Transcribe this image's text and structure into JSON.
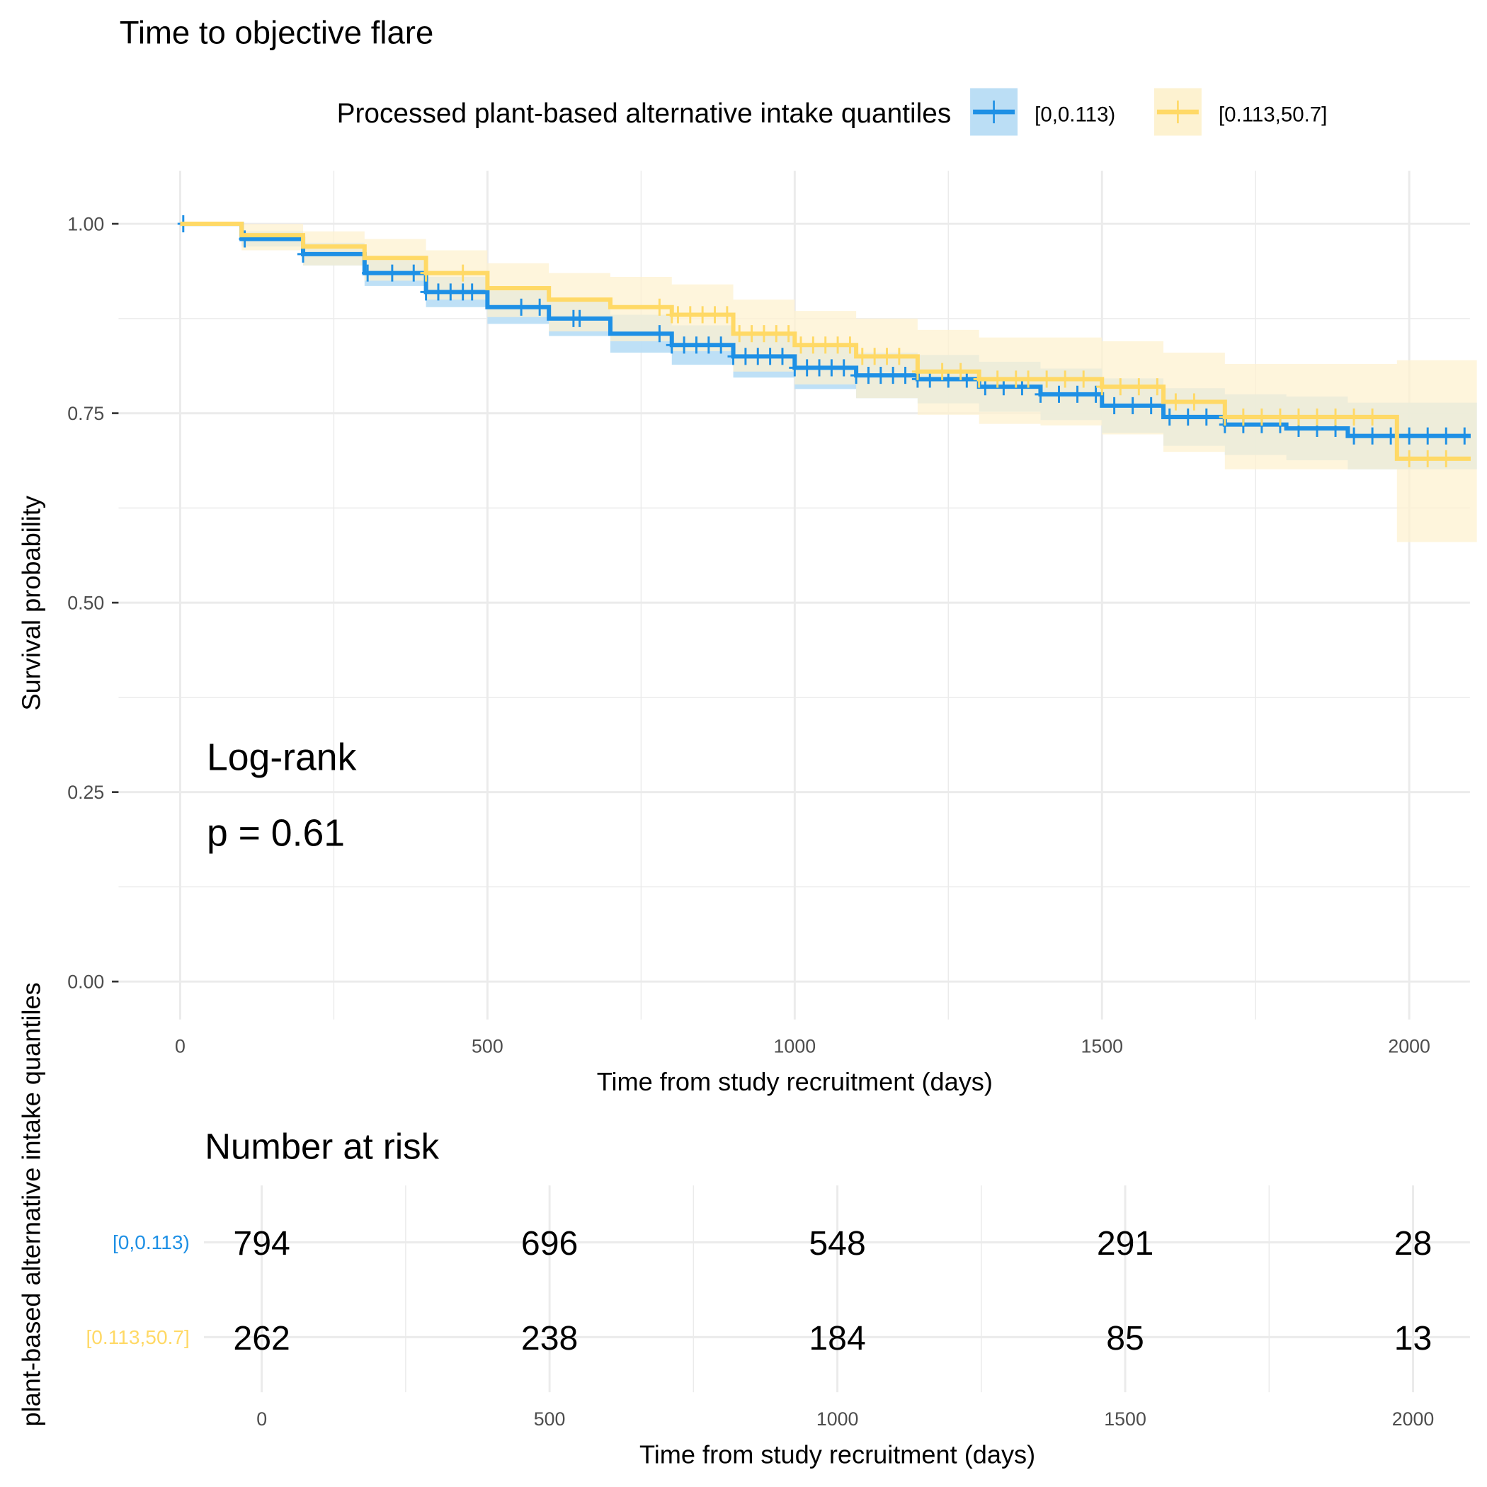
{
  "chart_data": [
    {
      "type": "line",
      "subtype": "kaplan-meier",
      "title": "Time to objective flare",
      "xlabel": "Time from study recruitment (days)",
      "ylabel": "Survival probability",
      "xlim": [
        0,
        2100
      ],
      "ylim": [
        0,
        1
      ],
      "xticks": [
        0,
        500,
        1000,
        1500,
        2000
      ],
      "yticks": [
        "0.00",
        "0.25",
        "0.50",
        "0.75",
        "1.00"
      ],
      "grid": true,
      "legend": {
        "title": "Processed plant-based alternative intake quantiles",
        "position": "top"
      },
      "annotation": {
        "line1": "Log-rank",
        "line2": "p = 0.61"
      },
      "series": [
        {
          "name": "[0,0.113)",
          "color": "#1E90E5",
          "fill": "#BBDEF5",
          "x": [
            0,
            100,
            200,
            300,
            400,
            500,
            600,
            700,
            800,
            900,
            1000,
            1100,
            1200,
            1300,
            1400,
            1500,
            1600,
            1700,
            1800,
            1900,
            2100
          ],
          "y": [
            1,
            0.98,
            0.96,
            0.935,
            0.91,
            0.89,
            0.875,
            0.855,
            0.84,
            0.825,
            0.81,
            0.8,
            0.795,
            0.785,
            0.775,
            0.76,
            0.745,
            0.735,
            0.73,
            0.72,
            0.72
          ],
          "lower": [
            1,
            0.97,
            0.945,
            0.918,
            0.89,
            0.868,
            0.852,
            0.83,
            0.814,
            0.797,
            0.782,
            0.77,
            0.763,
            0.752,
            0.741,
            0.724,
            0.707,
            0.695,
            0.688,
            0.676,
            0.676
          ],
          "upper": [
            1,
            0.99,
            0.975,
            0.952,
            0.93,
            0.912,
            0.898,
            0.88,
            0.866,
            0.853,
            0.838,
            0.83,
            0.827,
            0.818,
            0.809,
            0.796,
            0.783,
            0.775,
            0.772,
            0.764,
            0.764
          ],
          "censored": [
            5,
            105,
            200,
            305,
            345,
            380,
            400,
            420,
            440,
            460,
            475,
            555,
            585,
            640,
            650,
            780,
            800,
            820,
            840,
            860,
            880,
            900,
            920,
            940,
            960,
            980,
            1000,
            1020,
            1040,
            1060,
            1080,
            1100,
            1120,
            1140,
            1160,
            1180,
            1200,
            1220,
            1250,
            1280,
            1310,
            1340,
            1370,
            1400,
            1430,
            1460,
            1490,
            1520,
            1550,
            1580,
            1610,
            1640,
            1670,
            1700,
            1730,
            1760,
            1790,
            1820,
            1850,
            1880,
            1910,
            1940,
            1970,
            2000,
            2030,
            2060,
            2090
          ]
        },
        {
          "name": "[0.113,50.7]",
          "color": "#FFD966",
          "fill": "#FDF2D0",
          "x": [
            0,
            100,
            200,
            300,
            400,
            500,
            600,
            700,
            800,
            900,
            1000,
            1100,
            1200,
            1300,
            1400,
            1500,
            1600,
            1700,
            1800,
            1900,
            1980,
            2100
          ],
          "y": [
            1,
            0.985,
            0.97,
            0.955,
            0.935,
            0.915,
            0.9,
            0.89,
            0.88,
            0.855,
            0.84,
            0.825,
            0.805,
            0.795,
            0.795,
            0.785,
            0.765,
            0.745,
            0.745,
            0.745,
            0.69,
            0.69
          ],
          "lower": [
            1,
            0.965,
            0.945,
            0.925,
            0.9,
            0.877,
            0.858,
            0.845,
            0.832,
            0.805,
            0.788,
            0.77,
            0.748,
            0.736,
            0.734,
            0.722,
            0.699,
            0.676,
            0.676,
            0.676,
            0.58,
            0.58
          ],
          "upper": [
            1,
            1,
            0.99,
            0.98,
            0.965,
            0.948,
            0.935,
            0.93,
            0.92,
            0.9,
            0.885,
            0.875,
            0.86,
            0.85,
            0.85,
            0.845,
            0.83,
            0.815,
            0.815,
            0.815,
            0.82,
            0.82
          ],
          "censored": [
            400,
            460,
            780,
            800,
            810,
            830,
            850,
            870,
            890,
            910,
            930,
            950,
            970,
            990,
            1010,
            1030,
            1050,
            1070,
            1090,
            1110,
            1130,
            1150,
            1170,
            1200,
            1240,
            1270,
            1300,
            1330,
            1360,
            1380,
            1410,
            1440,
            1470,
            1500,
            1530,
            1560,
            1590,
            1620,
            1650,
            1700,
            1730,
            1760,
            1790,
            1820,
            1850,
            1880,
            1910,
            1940,
            2000,
            2030,
            2060
          ]
        }
      ]
    },
    {
      "type": "table",
      "title": "Number at risk",
      "xlabel": "Time from study recruitment (days)",
      "ylabel": "plant-based alternative intake quantiles",
      "xticks": [
        0,
        500,
        1000,
        1500,
        2000
      ],
      "rows": [
        {
          "label": "[0,0.113)",
          "color": "#1E90E5",
          "values": [
            "794",
            "696",
            "548",
            "291",
            "28"
          ]
        },
        {
          "label": "[0.113,50.7]",
          "color": "#FFD966",
          "values": [
            "262",
            "238",
            "184",
            "85",
            "13"
          ]
        }
      ]
    }
  ]
}
